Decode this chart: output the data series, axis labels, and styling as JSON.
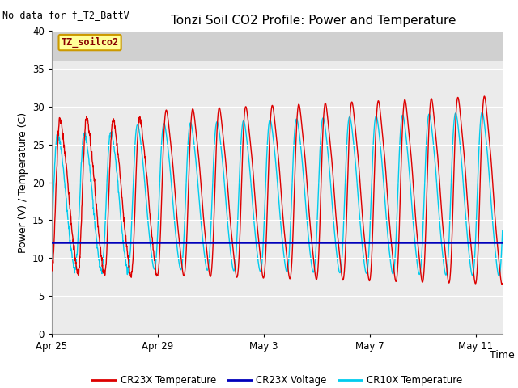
{
  "title": "Tonzi Soil CO2 Profile: Power and Temperature",
  "subtitle": "No data for f_T2_BattV",
  "ylabel": "Power (V) / Temperature (C)",
  "xlabel": "Time",
  "ylim": [
    0,
    40
  ],
  "xlim_days": [
    0,
    17
  ],
  "yticks": [
    0,
    5,
    10,
    15,
    20,
    25,
    30,
    35,
    40
  ],
  "xtick_positions": [
    0,
    4,
    8,
    12,
    16
  ],
  "xtick_labels": [
    "Apr 25",
    "Apr 29",
    "May 3",
    "May 7",
    "May 11"
  ],
  "cr23x_color": "#DD0000",
  "cr10x_color": "#00CCEE",
  "voltage_color": "#0000BB",
  "voltage_value": 12.0,
  "background_color": "#EBEBEB",
  "plot_bg_top": "#DCDCDC",
  "legend_label_box": "TZ_soilco2",
  "legend_entries": [
    "CR23X Temperature",
    "CR23X Voltage",
    "CR10X Temperature"
  ],
  "title_fontsize": 11,
  "axis_fontsize": 9,
  "tick_fontsize": 8.5,
  "subtitle_fontsize": 8.5
}
